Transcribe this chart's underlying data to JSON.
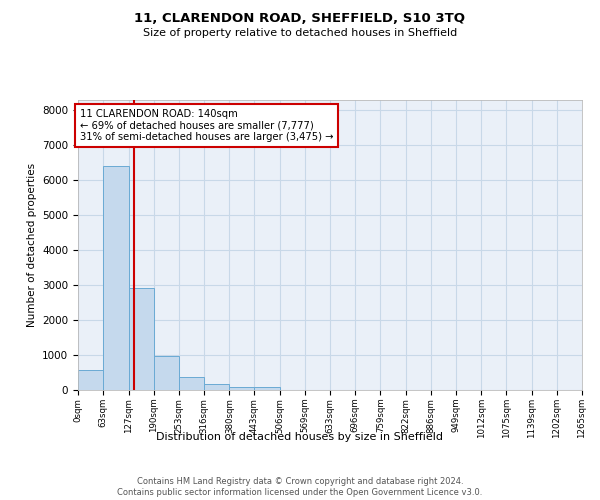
{
  "title": "11, CLARENDON ROAD, SHEFFIELD, S10 3TQ",
  "subtitle": "Size of property relative to detached houses in Sheffield",
  "xlabel": "Distribution of detached houses by size in Sheffield",
  "ylabel": "Number of detached properties",
  "bar_color": "#c5d9ed",
  "bar_edge_color": "#6aaad4",
  "grid_color": "#c8d8e8",
  "background_color": "#eaf0f8",
  "property_line_x": 140,
  "property_line_color": "#cc0000",
  "annotation_text": "11 CLARENDON ROAD: 140sqm\n← 69% of detached houses are smaller (7,777)\n31% of semi-detached houses are larger (3,475) →",
  "annotation_box_color": "#ffffff",
  "annotation_box_edge_color": "#cc0000",
  "bins": [
    0,
    63,
    127,
    190,
    253,
    316,
    380,
    443,
    506,
    569,
    633,
    696,
    759,
    822,
    886,
    949,
    1012,
    1075,
    1139,
    1202,
    1265
  ],
  "bin_labels": [
    "0sqm",
    "63sqm",
    "127sqm",
    "190sqm",
    "253sqm",
    "316sqm",
    "380sqm",
    "443sqm",
    "506sqm",
    "569sqm",
    "633sqm",
    "696sqm",
    "759sqm",
    "822sqm",
    "886sqm",
    "949sqm",
    "1012sqm",
    "1075sqm",
    "1139sqm",
    "1202sqm",
    "1265sqm"
  ],
  "bar_heights": [
    560,
    6400,
    2920,
    980,
    360,
    175,
    100,
    75,
    0,
    0,
    0,
    0,
    0,
    0,
    0,
    0,
    0,
    0,
    0,
    0
  ],
  "ylim": [
    0,
    8300
  ],
  "yticks": [
    0,
    1000,
    2000,
    3000,
    4000,
    5000,
    6000,
    7000,
    8000
  ],
  "footer_text": "Contains HM Land Registry data © Crown copyright and database right 2024.\nContains public sector information licensed under the Open Government Licence v3.0.",
  "figsize": [
    6.0,
    5.0
  ],
  "dpi": 100
}
